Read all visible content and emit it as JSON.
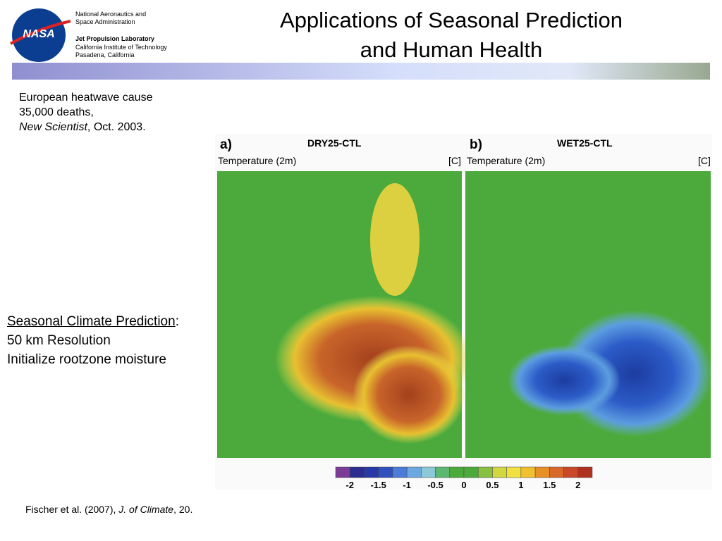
{
  "header": {
    "agency": [
      "National Aeronautics and",
      "Space Administration"
    ],
    "lab": "Jet Propulsion Laboratory",
    "institute": [
      "California Institute of Technology",
      "Pasadena, California"
    ],
    "logo": "NASA",
    "title": [
      "Applications of Seasonal Prediction",
      "and Human Health"
    ]
  },
  "note": {
    "lines": [
      "European heatwave cause",
      "35,000 deaths,"
    ],
    "source": "New Scientist",
    "date": ", Oct. 2003."
  },
  "side": {
    "heading": "Seasonal Climate Prediction",
    "colon": ":",
    "lines": [
      "50 km Resolution",
      "Initialize rootzone moisture"
    ]
  },
  "figure": {
    "panels": [
      {
        "letter": "a)",
        "name": "DRY25-CTL",
        "variable": "Temperature (2m)",
        "unit": "[C]"
      },
      {
        "letter": "b)",
        "name": "WET25-CTL",
        "variable": "Temperature (2m)",
        "unit": "[C]"
      }
    ],
    "colorbar": [
      "-2",
      "-1.5",
      "-1",
      "-0.5",
      "0",
      "0.5",
      "1",
      "1.5",
      "2"
    ]
  },
  "citation": {
    "authors": "Fischer et al. (2007),",
    "journal": "J. of Climate",
    "issue": ", 20."
  }
}
